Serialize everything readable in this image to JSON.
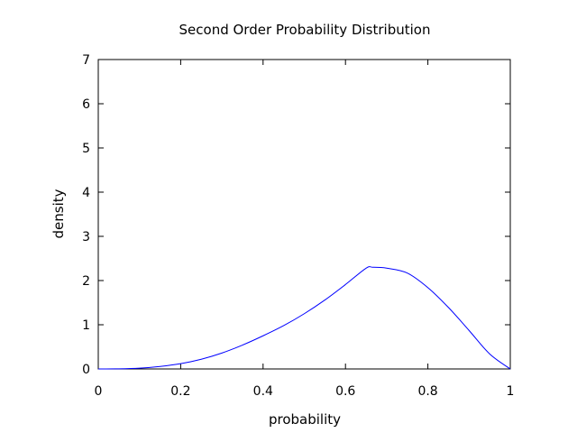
{
  "chart_data": {
    "type": "line",
    "title": "Second Order Probability Distribution",
    "xlabel": "probability",
    "ylabel": "density",
    "xlim": [
      0,
      1
    ],
    "ylim": [
      0,
      7
    ],
    "xticks": [
      "0",
      "0.2",
      "0.4",
      "0.6",
      "0.8",
      "1"
    ],
    "yticks": [
      "0",
      "1",
      "2",
      "3",
      "4",
      "5",
      "6",
      "7"
    ],
    "grid": false,
    "legend": "none",
    "series": [
      {
        "color": "#0000ff",
        "x": [
          0,
          0.05,
          0.1,
          0.15,
          0.2,
          0.25,
          0.3,
          0.35,
          0.4,
          0.45,
          0.5,
          0.55,
          0.6,
          0.65,
          0.6667,
          0.7,
          0.75,
          0.8,
          0.85,
          0.9,
          0.95,
          1
        ],
        "y": [
          0,
          0.003,
          0.018,
          0.057,
          0.12,
          0.22,
          0.36,
          0.54,
          0.75,
          0.98,
          1.25,
          1.56,
          1.91,
          2.28,
          2.3,
          2.28,
          2.17,
          1.84,
          1.39,
          0.87,
          0.34,
          0
        ]
      }
    ]
  }
}
